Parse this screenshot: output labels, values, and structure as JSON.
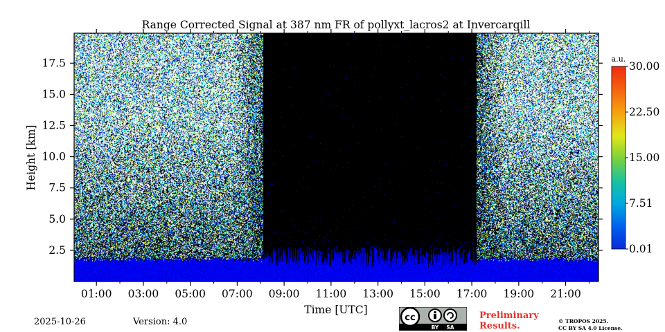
{
  "chart_data": {
    "type": "heatmap",
    "title": "Range Corrected Signal at 387 nm FR of pollyxt_lacros2 at Invercargill",
    "xlabel": "Time [UTC]",
    "ylabel": "Height [km]",
    "x_ticks": [
      "01:00",
      "03:00",
      "05:00",
      "07:00",
      "09:00",
      "11:00",
      "13:00",
      "15:00",
      "17:00",
      "19:00",
      "21:00"
    ],
    "x_tick_hours": [
      1,
      3,
      5,
      7,
      9,
      11,
      13,
      15,
      17,
      19,
      21
    ],
    "xlim_hours": [
      0.05,
      22.4
    ],
    "y_ticks": [
      "2.5",
      "5.0",
      "7.5",
      "10.0",
      "12.5",
      "15.0",
      "17.5"
    ],
    "y_tick_values": [
      2.5,
      5.0,
      7.5,
      10.0,
      12.5,
      15.0,
      17.5
    ],
    "ylim_km": [
      0,
      19.9
    ],
    "colorbar": {
      "unit": "a.u.",
      "ticks": [
        "0.01",
        "7.51",
        "15.00",
        "22.50",
        "30.00"
      ],
      "tick_values": [
        0.01,
        7.51,
        15.0,
        22.5,
        30.0
      ],
      "range": [
        0.01,
        30.0
      ],
      "colormap": "jet"
    },
    "daylight_gap_hours": [
      8.1,
      17.2
    ],
    "colors": {
      "background_noise": "#000000",
      "boundary_layer": "#1a4fd8"
    }
  },
  "footer": {
    "date": "2025-10-26",
    "version": "Version: 4.0",
    "preliminary_line1": "Preliminary",
    "preliminary_line2": "Results.",
    "copyright_line1": "© TROPOS 2025.",
    "copyright_line2": "CC BY SA 4.0 License.",
    "cc_by": "BY",
    "cc_sa": "SA"
  }
}
